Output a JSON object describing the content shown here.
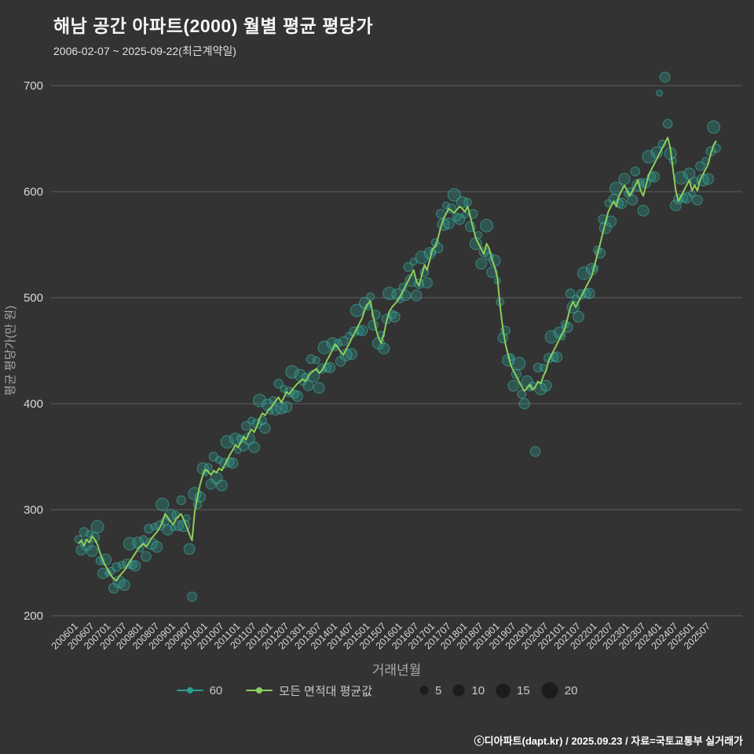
{
  "header": {
    "title": "해남 공간 아파트(2000) 월별 평균 평당가",
    "subtitle": "2006-02-07 ~ 2025-09-22(최근계약일)"
  },
  "axes": {
    "y_label": "평균 평당가(만 원)",
    "x_label": "거래년월",
    "y_ticks": [
      200,
      300,
      400,
      500,
      600,
      700
    ],
    "x_tick_labels": [
      "200601",
      "200607",
      "200701",
      "200707",
      "200801",
      "200807",
      "200901",
      "200907",
      "201001",
      "201007",
      "201101",
      "201107",
      "201201",
      "201207",
      "201301",
      "201307",
      "201401",
      "201407",
      "201501",
      "201507",
      "201601",
      "201607",
      "201701",
      "201707",
      "201801",
      "201807",
      "201901",
      "201907",
      "202001",
      "202007",
      "202101",
      "202107",
      "202201",
      "202207",
      "202301",
      "202307",
      "202401",
      "202407",
      "202501",
      "202507"
    ]
  },
  "legend": {
    "scatter_label": "60",
    "line_label": "모든 면적대 평균값",
    "sizes": [
      5,
      10,
      15,
      20
    ]
  },
  "footer": {
    "credit": "ⓒ디아파트(dapt.kr) / 2025.09.23 / 자료=국토교통부 실거래가"
  },
  "colors": {
    "background": "#333333",
    "grid": "#5c5c5c",
    "line_green": "#8ccf5c",
    "scatter_teal": "#2a9d8f",
    "scatter_stroke": "#3fbfae",
    "tick_text": "#d8d8d8",
    "axis_label": "#aaaaaa"
  },
  "chart_data": {
    "type": "scatter",
    "title": "해남 공간 아파트(2000) 월별 평균 평당가",
    "xlabel": "거래년월",
    "ylabel": "평균 평당가(만 원)",
    "ylim": [
      200,
      700
    ],
    "x_start": "2006-01",
    "x_end": "2025-09",
    "x_interval": "monthly",
    "grid": true,
    "legend_position": "bottom",
    "line": {
      "name": "모든 면적대 평균값",
      "values": [
        268,
        271,
        266,
        272,
        269,
        275,
        272,
        267,
        259,
        252,
        247,
        243,
        238,
        235,
        233,
        237,
        240,
        243,
        247,
        251,
        255,
        259,
        263,
        266,
        268,
        265,
        269,
        273,
        276,
        279,
        283,
        288,
        296,
        293,
        289,
        286,
        291,
        294,
        296,
        290,
        284,
        277,
        271,
        298,
        312,
        324,
        333,
        338,
        336,
        333,
        337,
        335,
        339,
        337,
        342,
        347,
        352,
        356,
        361,
        359,
        363,
        369,
        366,
        372,
        376,
        373,
        379,
        386,
        391,
        389,
        393,
        396,
        399,
        403,
        406,
        401,
        406,
        411,
        409,
        413,
        416,
        419,
        421,
        423,
        421,
        426,
        429,
        431,
        433,
        429,
        431,
        436,
        441,
        446,
        451,
        456,
        453,
        449,
        446,
        451,
        456,
        461,
        466,
        471,
        476,
        481,
        489,
        494,
        497,
        483,
        471,
        462,
        457,
        466,
        478,
        487,
        491,
        494,
        497,
        501,
        506,
        511,
        516,
        521,
        526,
        516,
        511,
        521,
        531,
        526,
        536,
        546,
        548,
        556,
        566,
        574,
        579,
        584,
        582,
        580,
        583,
        586,
        584,
        581,
        586,
        576,
        566,
        556,
        551,
        546,
        541,
        551,
        546,
        536,
        529,
        519,
        492,
        471,
        456,
        446,
        436,
        431,
        426,
        421,
        416,
        412,
        415,
        418,
        413,
        416,
        421,
        419,
        426,
        431,
        441,
        446,
        451,
        456,
        461,
        466,
        471,
        481,
        491,
        496,
        491,
        496,
        501,
        506,
        511,
        516,
        521,
        531,
        541,
        551,
        561,
        571,
        581,
        586,
        591,
        586,
        596,
        601,
        606,
        601,
        596,
        601,
        606,
        611,
        601,
        596,
        606,
        616,
        621,
        626,
        631,
        636,
        641,
        646,
        651,
        641,
        621,
        601,
        591,
        596,
        601,
        606,
        611,
        601,
        606,
        601,
        611,
        616,
        621,
        626,
        636,
        644,
        648
      ]
    },
    "scatter": {
      "name": "60",
      "values": [
        272,
        262,
        279,
        267,
        277,
        261,
        274,
        284,
        252,
        240,
        253,
        240,
        242,
        226,
        246,
        232,
        248,
        229,
        249,
        268,
        248,
        247,
        269,
        263,
        272,
        256,
        282,
        268,
        284,
        265,
        285,
        305,
        289,
        281,
        295,
        283,
        295,
        285,
        309,
        285,
        292,
        263,
        218,
        315,
        305,
        312,
        339,
        335,
        340,
        324,
        350,
        330,
        347,
        323,
        344,
        364,
        345,
        344,
        367,
        356,
        367,
        360,
        379,
        367,
        384,
        359,
        381,
        403,
        384,
        377,
        399,
        393,
        403,
        394,
        419,
        396,
        414,
        397,
        411,
        430,
        409,
        407,
        427,
        420,
        425,
        417,
        442,
        426,
        441,
        415,
        433,
        453,
        434,
        434,
        457,
        453,
        457,
        440,
        459,
        446,
        464,
        447,
        468,
        488,
        469,
        469,
        495,
        491,
        501,
        474,
        484,
        457,
        465,
        452,
        480,
        504,
        484,
        482,
        503,
        498,
        510,
        502,
        529,
        516,
        534,
        502,
        513,
        538,
        524,
        514,
        542,
        543,
        552,
        547,
        579,
        569,
        587,
        570,
        584,
        597,
        576,
        574,
        590,
        578,
        590,
        567,
        579,
        551,
        559,
        532,
        543,
        568,
        539,
        524,
        535,
        516,
        496,
        462,
        469,
        441,
        444,
        417,
        428,
        438,
        409,
        400,
        421,
        415,
        417,
        355,
        434,
        414,
        434,
        417,
        443,
        463,
        444,
        444,
        467,
        463,
        475,
        472,
        504,
        491,
        499,
        482,
        503,
        523,
        504,
        504,
        527,
        528,
        545,
        542,
        574,
        566,
        589,
        572,
        593,
        603,
        589,
        589,
        612,
        598,
        600,
        592,
        619,
        606,
        609,
        582,
        608,
        633,
        614,
        614,
        637,
        693,
        645,
        708,
        664,
        636,
        629,
        587,
        593,
        613,
        594,
        594,
        617,
        598,
        610,
        592,
        624,
        611,
        629,
        612,
        638,
        661,
        641
      ],
      "sizes": [
        6,
        10,
        8,
        14,
        5,
        12,
        9,
        16,
        7,
        11,
        13,
        4,
        6,
        10,
        8,
        14,
        5,
        12,
        9,
        16,
        7,
        11,
        13,
        4,
        6,
        10,
        8,
        14,
        5,
        12,
        9,
        16,
        7,
        11,
        13,
        4,
        6,
        10,
        8,
        14,
        5,
        12,
        9,
        16,
        7,
        11,
        13,
        4,
        6,
        10,
        8,
        14,
        5,
        12,
        9,
        16,
        7,
        11,
        13,
        4,
        6,
        10,
        8,
        14,
        5,
        12,
        9,
        16,
        7,
        11,
        13,
        4,
        6,
        10,
        8,
        14,
        5,
        12,
        9,
        16,
        7,
        11,
        13,
        4,
        6,
        10,
        8,
        14,
        5,
        12,
        9,
        16,
        7,
        11,
        13,
        4,
        6,
        10,
        8,
        14,
        5,
        12,
        9,
        16,
        7,
        11,
        13,
        4,
        6,
        10,
        8,
        14,
        5,
        12,
        9,
        16,
        7,
        11,
        13,
        4,
        6,
        10,
        8,
        14,
        5,
        12,
        9,
        16,
        7,
        11,
        13,
        4,
        6,
        10,
        8,
        14,
        5,
        12,
        9,
        16,
        7,
        11,
        13,
        4,
        6,
        10,
        8,
        14,
        5,
        12,
        9,
        16,
        7,
        11,
        13,
        4,
        6,
        10,
        8,
        14,
        5,
        12,
        9,
        16,
        7,
        11,
        13,
        4,
        6,
        10,
        8,
        14,
        5,
        12,
        9,
        16,
        7,
        11,
        13,
        4,
        6,
        10,
        8,
        14,
        5,
        12,
        9,
        16,
        7,
        11,
        13,
        4,
        6,
        10,
        8,
        14,
        5,
        12,
        9,
        16,
        7,
        11,
        13,
        4,
        6,
        10,
        8,
        14,
        5,
        12,
        9,
        16,
        7,
        11,
        13,
        4,
        6,
        10,
        8,
        14,
        5,
        12,
        9,
        16,
        7,
        11,
        13,
        4,
        6,
        10,
        8,
        14,
        5,
        12,
        9,
        16,
        7
      ]
    }
  }
}
